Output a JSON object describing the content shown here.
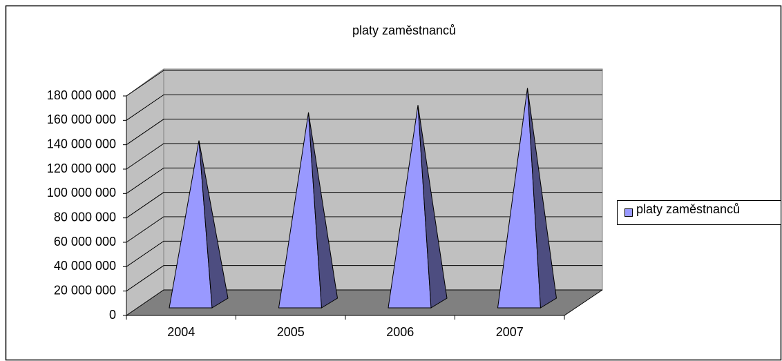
{
  "chart_data": {
    "type": "pyramid3d",
    "title": "platy zaměstnanců",
    "categories": [
      "2004",
      "2005",
      "2006",
      "2007"
    ],
    "series": [
      {
        "name": "platy zaměstnanců",
        "color": "#9999ff",
        "values": [
          133000000,
          156000000,
          162000000,
          176000000
        ]
      }
    ],
    "ylim": [
      0,
      180000000
    ],
    "yticks": [
      0,
      {
        "value": 20000000,
        "label": "20 000 000"
      },
      {
        "value": 40000000,
        "label": "40 000 000"
      },
      {
        "value": 60000000,
        "label": "60 000 000"
      },
      {
        "value": 80000000,
        "label": "80 000 000"
      },
      {
        "value": 100000000,
        "label": "100 000 000"
      },
      {
        "value": 120000000,
        "label": "120 000 000"
      },
      {
        "value": 140000000,
        "label": "140 000 000"
      },
      {
        "value": 160000000,
        "label": "160 000 000"
      },
      {
        "value": 180000000,
        "label": "180 000 000"
      }
    ],
    "grid": true,
    "legend": "right"
  }
}
